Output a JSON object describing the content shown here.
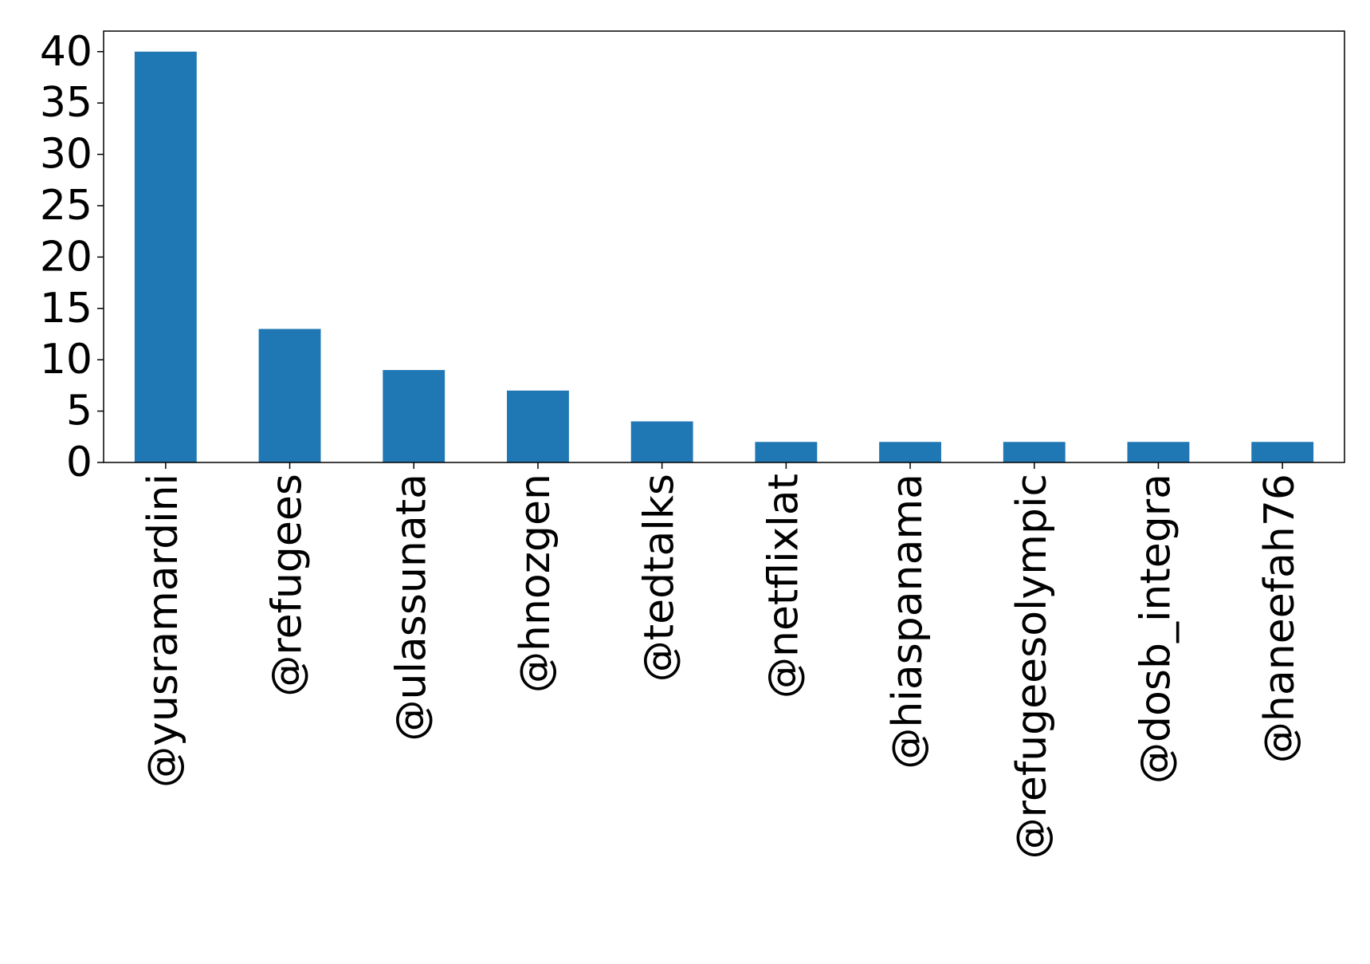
{
  "chart_data": {
    "type": "bar",
    "categories": [
      "@yusramardini",
      "@refugees",
      "@ulassunata",
      "@hnozgen",
      "@tedtalks",
      "@netflixlat",
      "@hiaspanama",
      "@refugeesolympic",
      "@dosb_integra",
      "@haneefah76"
    ],
    "values": [
      40,
      13,
      9,
      7,
      4,
      2,
      2,
      2,
      2,
      2
    ],
    "color": "#1f77b4",
    "ylim": [
      0,
      42
    ],
    "yticks": [
      0,
      5,
      10,
      15,
      20,
      25,
      30,
      35,
      40
    ],
    "grid": false
  }
}
